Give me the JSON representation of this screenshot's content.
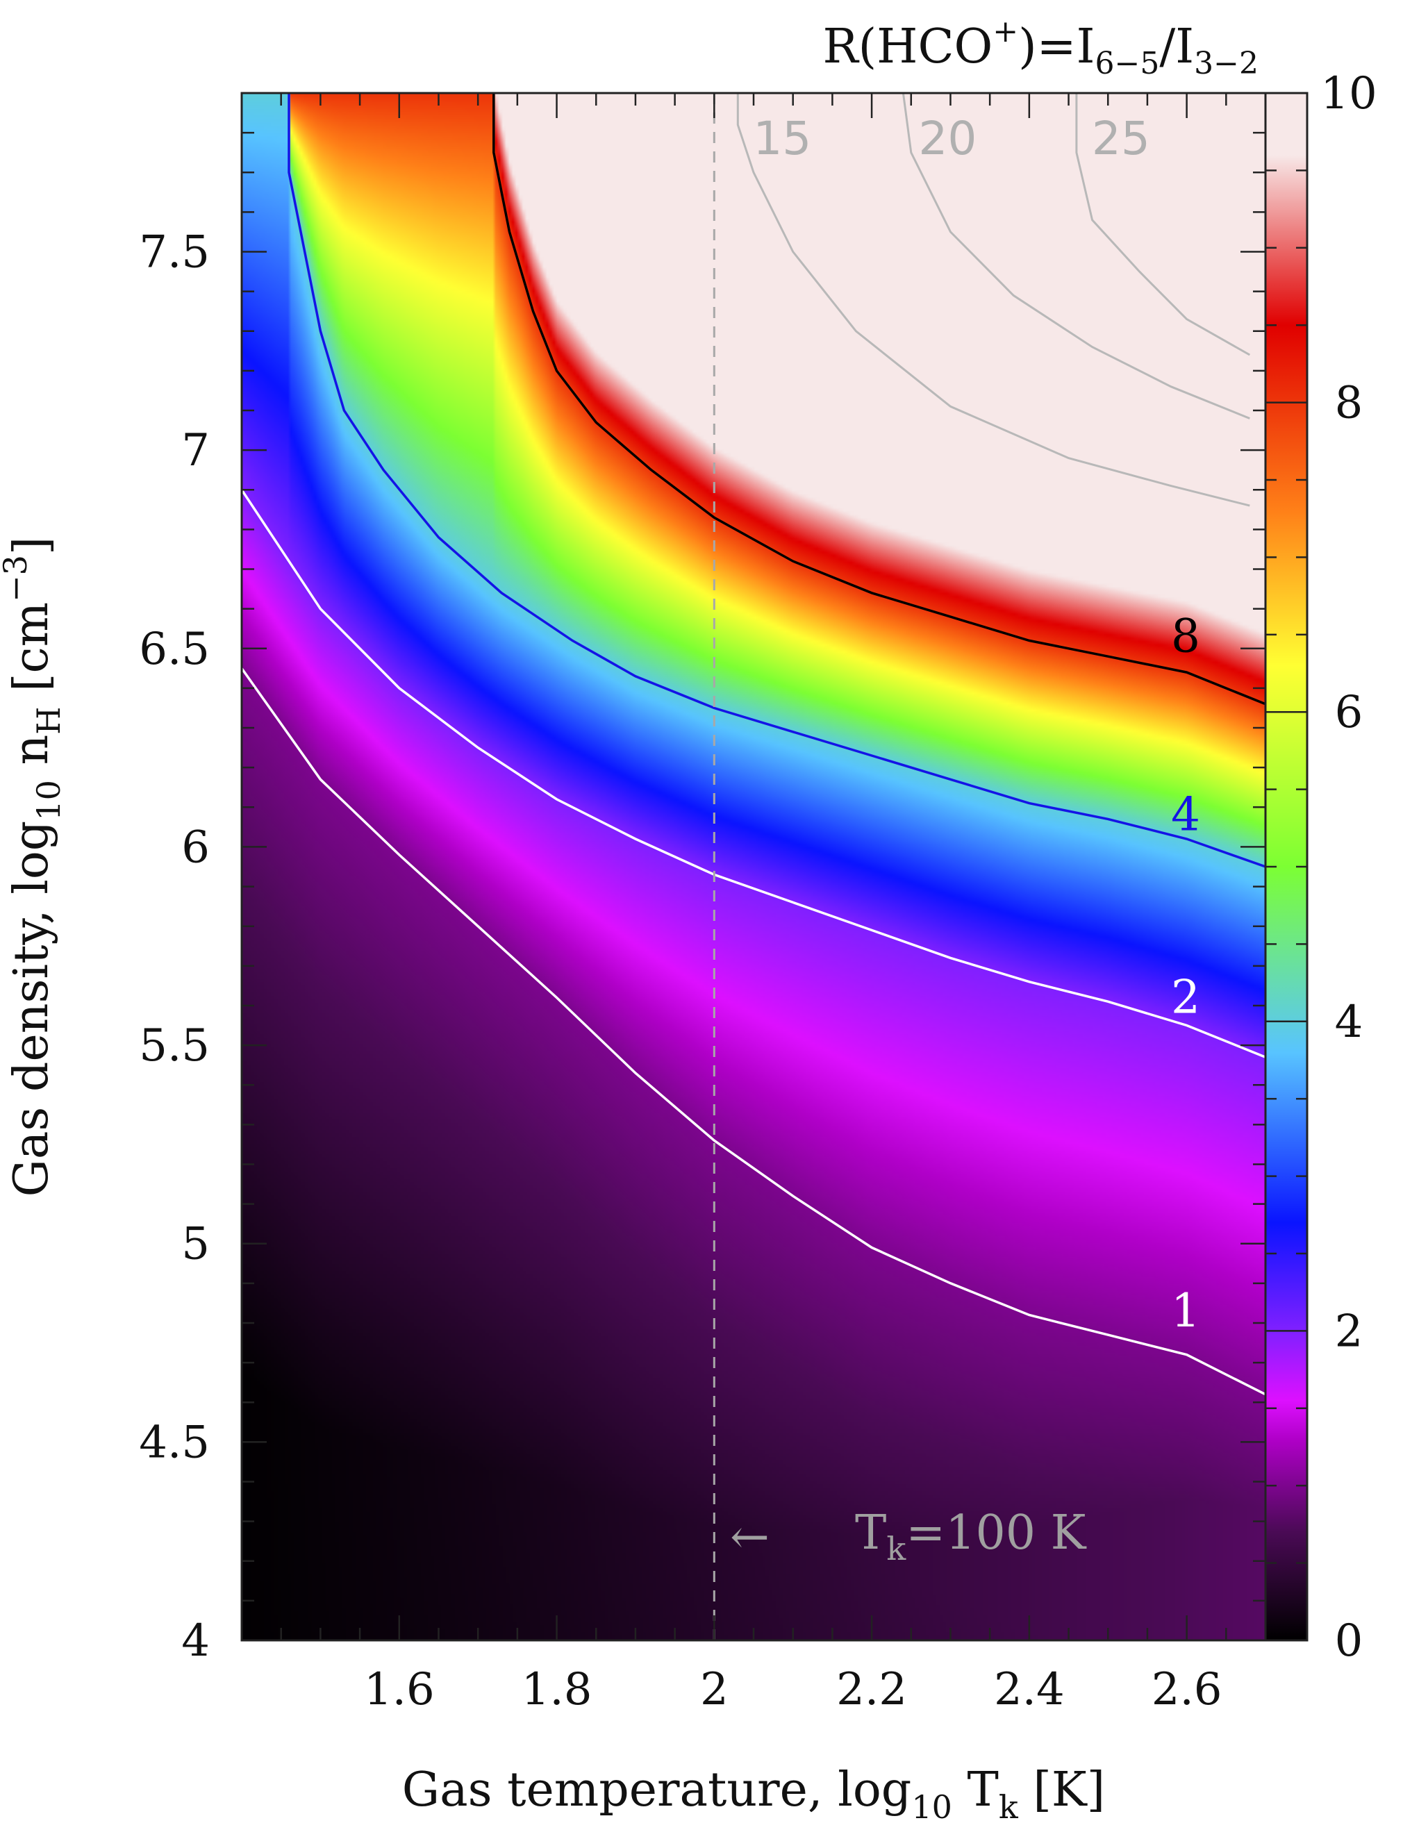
{
  "chart_data": {
    "type": "heatmap",
    "title_parts": {
      "r": "R(HCO",
      "sup": "+",
      "eq": ")=I",
      "sub1": "6−5",
      "slash": "/I",
      "sub2": "3−2"
    },
    "xlabel_parts": {
      "main": "Gas temperature, log",
      "sub10": "10",
      "t": " T",
      "subk": "k",
      "unit": " [K]"
    },
    "ylabel_parts": {
      "main": "Gas density, log",
      "sub10": "10",
      "n": " n",
      "subH": "H",
      "unit1": " [cm",
      "sup": "−3",
      "unit2": "]"
    },
    "xlim": [
      1.4,
      2.7
    ],
    "ylim": [
      4.0,
      7.9
    ],
    "x_ticks": [
      "1.6",
      "1.8",
      "2",
      "2.2",
      "2.4",
      "2.6"
    ],
    "y_ticks": [
      "4",
      "4.5",
      "5",
      "5.5",
      "6",
      "6.5",
      "7",
      "7.5"
    ],
    "colorbar": {
      "range": [
        0,
        10
      ],
      "ticks": [
        "0",
        "2",
        "4",
        "6",
        "8",
        "10"
      ]
    },
    "colormap": [
      "#000000",
      "#4a0a55",
      "#b000c8",
      "#dd10ff",
      "#8020ff",
      "#0a14ff",
      "#58c4ff",
      "#7cff33",
      "#ffff33",
      "#ff8018",
      "#e00000",
      "#f7e8e8"
    ],
    "contours": [
      {
        "level": "1",
        "color": "#ffffff",
        "label_pos": [
          2.58,
          4.83
        ],
        "points": [
          [
            1.4,
            6.45
          ],
          [
            1.5,
            6.17
          ],
          [
            1.6,
            5.98
          ],
          [
            1.7,
            5.8
          ],
          [
            1.8,
            5.62
          ],
          [
            1.9,
            5.43
          ],
          [
            2.0,
            5.26
          ],
          [
            2.1,
            5.12
          ],
          [
            2.2,
            4.99
          ],
          [
            2.3,
            4.9
          ],
          [
            2.4,
            4.82
          ],
          [
            2.5,
            4.77
          ],
          [
            2.6,
            4.72
          ],
          [
            2.7,
            4.62
          ]
        ]
      },
      {
        "level": "2",
        "color": "#ffffff",
        "label_pos": [
          2.58,
          5.62
        ],
        "points": [
          [
            1.4,
            6.9
          ],
          [
            1.5,
            6.6
          ],
          [
            1.6,
            6.4
          ],
          [
            1.7,
            6.25
          ],
          [
            1.8,
            6.12
          ],
          [
            1.9,
            6.02
          ],
          [
            2.0,
            5.93
          ],
          [
            2.1,
            5.86
          ],
          [
            2.2,
            5.79
          ],
          [
            2.3,
            5.72
          ],
          [
            2.4,
            5.66
          ],
          [
            2.5,
            5.61
          ],
          [
            2.6,
            5.55
          ],
          [
            2.7,
            5.47
          ]
        ]
      },
      {
        "level": "4",
        "color": "#1414e6",
        "label_pos": [
          2.58,
          6.08
        ],
        "points": [
          [
            1.46,
            7.9
          ],
          [
            1.46,
            7.7
          ],
          [
            1.48,
            7.5
          ],
          [
            1.5,
            7.3
          ],
          [
            1.53,
            7.1
          ],
          [
            1.58,
            6.95
          ],
          [
            1.65,
            6.78
          ],
          [
            1.73,
            6.64
          ],
          [
            1.82,
            6.52
          ],
          [
            1.9,
            6.43
          ],
          [
            2.0,
            6.35
          ],
          [
            2.1,
            6.29
          ],
          [
            2.2,
            6.23
          ],
          [
            2.3,
            6.17
          ],
          [
            2.4,
            6.11
          ],
          [
            2.5,
            6.07
          ],
          [
            2.6,
            6.02
          ],
          [
            2.7,
            5.95
          ]
        ]
      },
      {
        "level": "8",
        "color": "#000000",
        "label_pos": [
          2.58,
          6.53
        ],
        "points": [
          [
            1.72,
            7.9
          ],
          [
            1.72,
            7.75
          ],
          [
            1.74,
            7.55
          ],
          [
            1.77,
            7.35
          ],
          [
            1.8,
            7.2
          ],
          [
            1.85,
            7.07
          ],
          [
            1.92,
            6.95
          ],
          [
            2.0,
            6.83
          ],
          [
            2.1,
            6.72
          ],
          [
            2.2,
            6.64
          ],
          [
            2.3,
            6.58
          ],
          [
            2.4,
            6.52
          ],
          [
            2.5,
            6.48
          ],
          [
            2.6,
            6.44
          ],
          [
            2.7,
            6.36
          ]
        ]
      }
    ],
    "grey_contours": [
      {
        "level": "15",
        "points": [
          [
            2.03,
            7.9
          ],
          [
            2.03,
            7.82
          ],
          [
            2.05,
            7.7
          ],
          [
            2.1,
            7.5
          ],
          [
            2.18,
            7.3
          ],
          [
            2.3,
            7.11
          ],
          [
            2.45,
            6.98
          ],
          [
            2.58,
            6.91
          ],
          [
            2.68,
            6.86
          ]
        ]
      },
      {
        "level": "20",
        "points": [
          [
            2.24,
            7.9
          ],
          [
            2.25,
            7.75
          ],
          [
            2.3,
            7.55
          ],
          [
            2.38,
            7.39
          ],
          [
            2.48,
            7.26
          ],
          [
            2.58,
            7.16
          ],
          [
            2.68,
            7.08
          ]
        ]
      },
      {
        "level": "25",
        "points": [
          [
            2.46,
            7.9
          ],
          [
            2.46,
            7.75
          ],
          [
            2.48,
            7.58
          ],
          [
            2.54,
            7.45
          ],
          [
            2.6,
            7.33
          ],
          [
            2.68,
            7.24
          ]
        ]
      }
    ],
    "vline": {
      "x": 2.0,
      "style": "dashed",
      "color": "#a8a8a8"
    },
    "annotation": {
      "arrow": "←",
      "t": "T",
      "sub": "k",
      "text": "=100 K",
      "x": 2.02,
      "y": 4.27
    }
  }
}
